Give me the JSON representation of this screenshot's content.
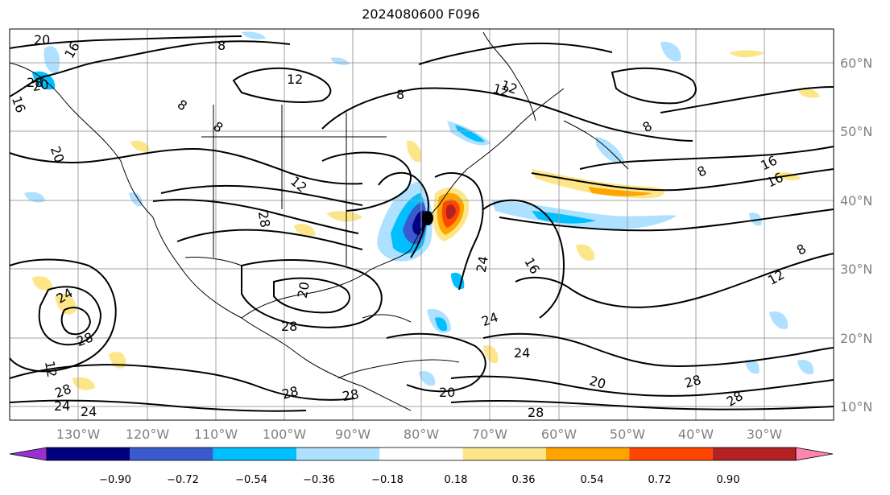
{
  "title": "2024080600 F096",
  "map": {
    "lon_labels": [
      "130°W",
      "120°W",
      "110°W",
      "100°W",
      "90°W",
      "80°W",
      "70°W",
      "60°W",
      "50°W",
      "40°W",
      "30°W"
    ],
    "lat_labels": [
      "60°N",
      "50°N",
      "40°N",
      "30°N",
      "20°N",
      "10°N"
    ],
    "contour_labels": [
      "20",
      "16",
      "28",
      "16",
      "20",
      "8",
      "12",
      "8",
      "8",
      "12",
      "8",
      "8",
      "16",
      "8",
      "16",
      "12",
      "28",
      "24",
      "12",
      "16",
      "8",
      "24",
      "28",
      "12",
      "28",
      "28",
      "24",
      "20",
      "28",
      "24",
      "20",
      "20",
      "28",
      "28",
      "24",
      "28",
      "28",
      "12",
      "24",
      "20"
    ]
  },
  "colorbar": {
    "ticks": [
      "−0.90",
      "−0.72",
      "−0.54",
      "−0.36",
      "−0.18",
      "0.18",
      "0.36",
      "0.54",
      "0.72",
      "0.90"
    ],
    "colors": [
      "#9b30d0",
      "#000080",
      "#3a5bd0",
      "#00bfff",
      "#aee0ff",
      "#ffffff",
      "#fde68a",
      "#ffa500",
      "#ff4500",
      "#b22222",
      "#ff85b0"
    ]
  }
}
